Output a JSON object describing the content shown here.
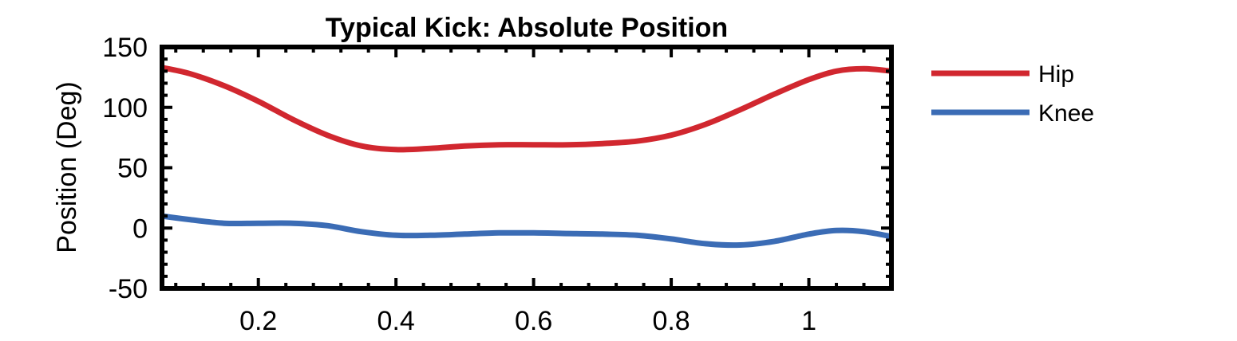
{
  "chart_data": {
    "type": "line",
    "title": "Typical Kick: Absolute Position",
    "xlabel": "",
    "ylabel": "Position (Deg)",
    "xlim": [
      0.06,
      1.12
    ],
    "ylim": [
      -50,
      150
    ],
    "x_ticks": [
      0.2,
      0.4,
      0.6,
      0.8,
      1
    ],
    "x_tick_labels": [
      "0.2",
      "0.4",
      "0.6",
      "0.8",
      "1"
    ],
    "y_ticks": [
      150,
      100,
      50,
      0,
      -50
    ],
    "y_tick_labels": [
      "150",
      "100",
      "50",
      "0",
      "-50"
    ],
    "grid": false,
    "legend_position": "outside-right",
    "series": [
      {
        "name": "Hip",
        "color": "#d1272f",
        "x": [
          0.06,
          0.1,
          0.15,
          0.2,
          0.25,
          0.3,
          0.35,
          0.4,
          0.45,
          0.5,
          0.55,
          0.6,
          0.65,
          0.7,
          0.75,
          0.8,
          0.85,
          0.9,
          0.95,
          1.0,
          1.04,
          1.08,
          1.12
        ],
        "y": [
          133,
          128,
          118,
          105,
          90,
          77,
          68,
          65,
          66,
          68,
          69,
          69,
          69,
          70,
          72,
          77,
          86,
          98,
          111,
          123,
          130,
          132,
          130
        ]
      },
      {
        "name": "Knee",
        "color": "#3b6cb5",
        "x": [
          0.06,
          0.1,
          0.15,
          0.2,
          0.25,
          0.3,
          0.35,
          0.4,
          0.45,
          0.5,
          0.55,
          0.6,
          0.65,
          0.7,
          0.75,
          0.8,
          0.85,
          0.9,
          0.95,
          1.0,
          1.04,
          1.08,
          1.12
        ],
        "y": [
          10,
          7,
          4,
          4,
          4,
          2,
          -3,
          -6,
          -6,
          -5,
          -4,
          -4,
          -4.5,
          -5,
          -6,
          -9,
          -13,
          -14,
          -11,
          -5,
          -2,
          -3,
          -7
        ]
      }
    ]
  }
}
